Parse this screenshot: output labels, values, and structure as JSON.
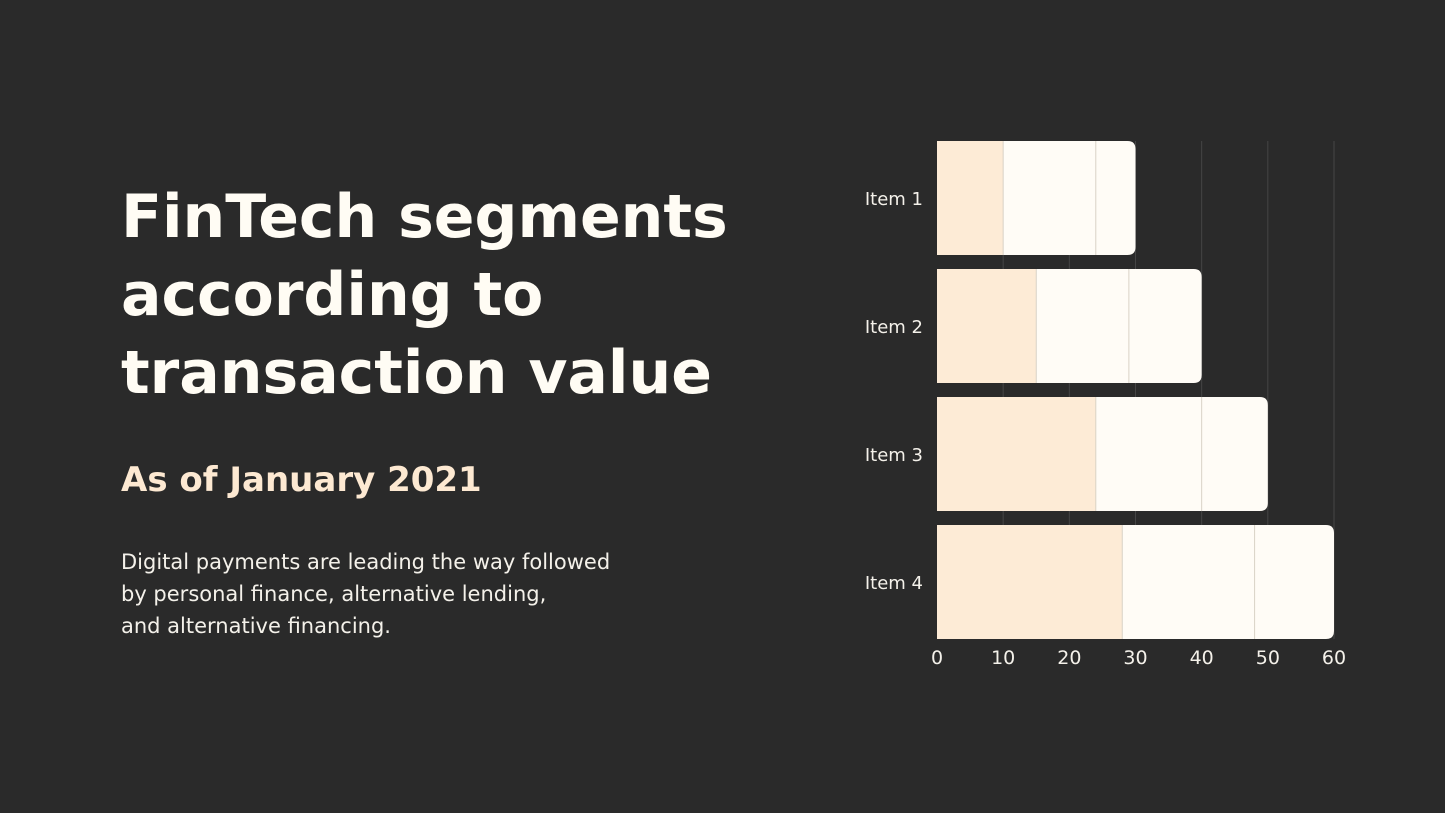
{
  "heading": {
    "title_lines": [
      "FinTech segments",
      "according to",
      "transaction value"
    ],
    "subtitle": "As of January 2021",
    "description_lines": [
      "Digital payments are leading the way followed",
      "by personal finance, alternative lending,",
      "and alternative financing."
    ]
  },
  "colors": {
    "background": "#2a2a2a",
    "title": "#fffcf4",
    "subtitle": "#fde9d2",
    "segment_primary": "#fdebd6",
    "segment_secondary": "#fffcf6",
    "segment_tertiary": "#fffcf6",
    "grid": "#454545",
    "tick_text": "#f4f1ea"
  },
  "chart_data": {
    "type": "bar",
    "orientation": "horizontal",
    "stacked": true,
    "categories": [
      "Item 1",
      "Item 2",
      "Item 3",
      "Item 4"
    ],
    "series": [
      {
        "values": [
          10,
          15,
          24,
          28
        ]
      },
      {
        "values": [
          14,
          14,
          16,
          20
        ]
      },
      {
        "values": [
          6,
          11,
          10,
          12
        ]
      }
    ],
    "xlim": [
      0,
      60
    ],
    "xticks": [
      "0",
      "10",
      "20",
      "30",
      "40",
      "50",
      "60"
    ],
    "grid": true,
    "legend": "none"
  }
}
